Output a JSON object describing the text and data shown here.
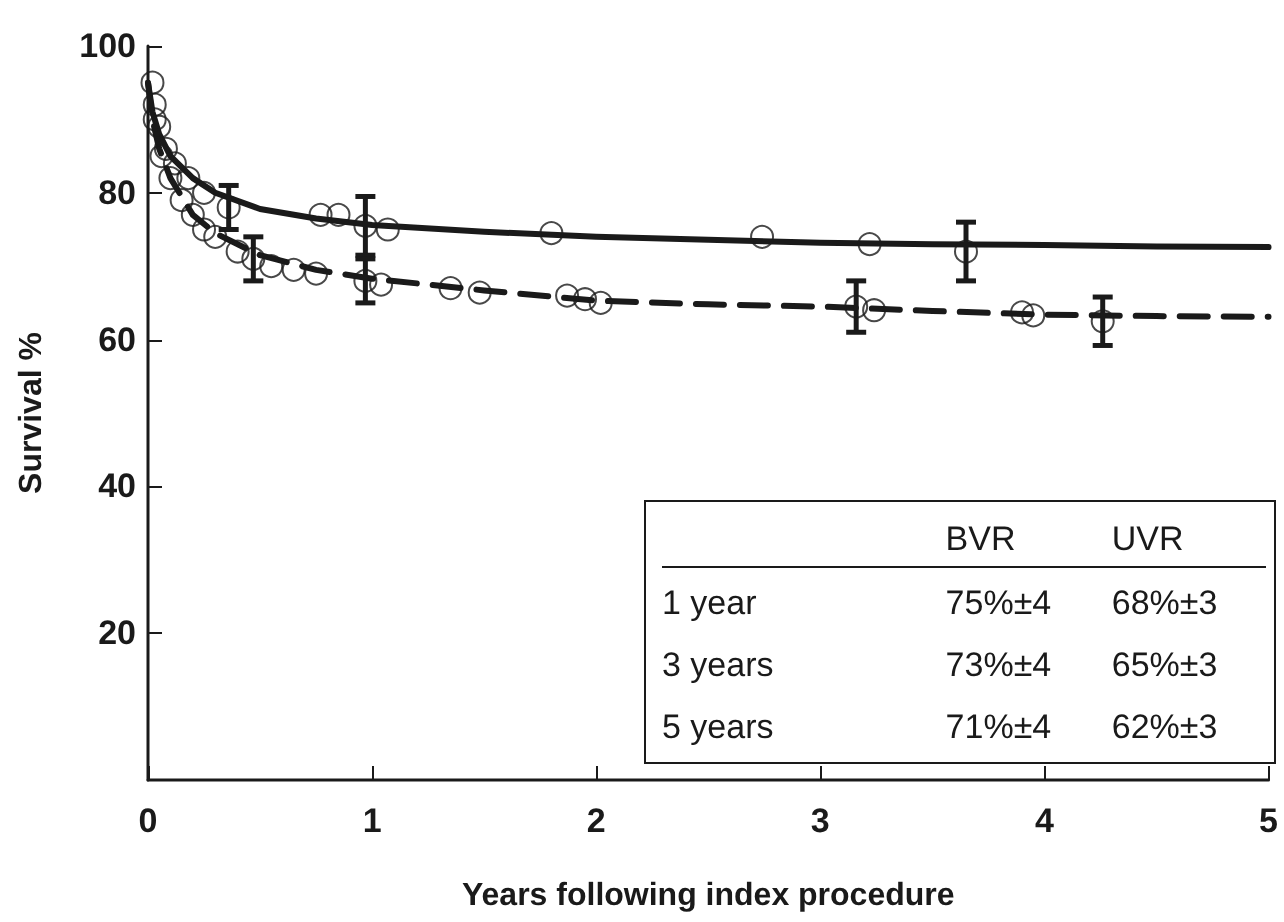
{
  "chart_data": {
    "type": "scatter",
    "xlabel": "Years following index procedure",
    "ylabel": "Survival %",
    "xlim": [
      0,
      5
    ],
    "xticks": [
      0,
      1,
      2,
      3,
      4,
      5
    ],
    "ylim": [
      0,
      100
    ],
    "yticks": [
      20,
      40,
      60,
      80,
      100
    ],
    "grid": false,
    "series": [
      {
        "type": "line",
        "line_style": "solid",
        "marker": "none",
        "color": "#1a1a1a",
        "x": [
          0,
          0.02,
          0.05,
          0.1,
          0.2,
          0.3,
          0.5,
          0.75,
          1,
          1.5,
          2,
          2.5,
          3,
          3.5,
          4,
          4.5,
          5
        ],
        "values": [
          95,
          91,
          88,
          85,
          82,
          80,
          77.8,
          76.5,
          75.6,
          74.7,
          74,
          73.6,
          73.2,
          73,
          72.9,
          72.7,
          72.6
        ]
      },
      {
        "type": "line",
        "line_style": "dashed",
        "marker": "none",
        "color": "#1a1a1a",
        "x": [
          0,
          0.02,
          0.05,
          0.1,
          0.2,
          0.3,
          0.5,
          0.75,
          1,
          1.5,
          2,
          2.5,
          3,
          3.5,
          4,
          4.5,
          5
        ],
        "values": [
          95,
          90,
          86,
          82,
          77,
          74.5,
          71.5,
          69.5,
          68.3,
          66.7,
          65.3,
          64.8,
          64.5,
          63.9,
          63.4,
          63.2,
          63.1
        ]
      },
      {
        "marker": "circle",
        "color": "#1a1a1a",
        "x": [
          0.02,
          0.03,
          0.05,
          0.08,
          0.12,
          0.18,
          0.25,
          0.36,
          0.77,
          0.85,
          0.97,
          1.07,
          1.8,
          2.74,
          3.22,
          3.65
        ],
        "values": [
          95,
          92,
          89,
          86,
          84,
          82,
          80,
          78,
          77,
          77,
          75.5,
          75,
          74.5,
          74,
          73,
          72
        ],
        "errors": [
          null,
          null,
          null,
          null,
          null,
          null,
          null,
          3,
          null,
          null,
          4,
          null,
          null,
          null,
          null,
          4
        ]
      },
      {
        "marker": "circle",
        "color": "#1a1a1a",
        "x": [
          0.03,
          0.06,
          0.1,
          0.15,
          0.2,
          0.25,
          0.3,
          0.4,
          0.47,
          0.55,
          0.65,
          0.75,
          0.97,
          1.04,
          1.35,
          1.48,
          1.87,
          1.95,
          2.02,
          3.16,
          3.24,
          3.9,
          3.95,
          4.26
        ],
        "values": [
          90,
          85,
          82,
          79,
          77,
          75,
          74,
          72,
          71,
          70,
          69.5,
          69,
          68,
          67.5,
          67,
          66.4,
          66,
          65.5,
          65,
          64.5,
          64,
          63.7,
          63.3,
          62.5
        ],
        "errors": [
          null,
          null,
          null,
          null,
          null,
          null,
          null,
          null,
          3,
          null,
          null,
          null,
          3,
          null,
          null,
          null,
          null,
          null,
          null,
          3.5,
          null,
          null,
          null,
          3.3
        ]
      }
    ],
    "annotations": [
      "BVR",
      "UVR",
      "1 year",
      "75%±4",
      "68%±3",
      "3 years",
      "73%±4",
      "65%±3",
      "5 years",
      "71%±4",
      "62%±3"
    ]
  }
}
